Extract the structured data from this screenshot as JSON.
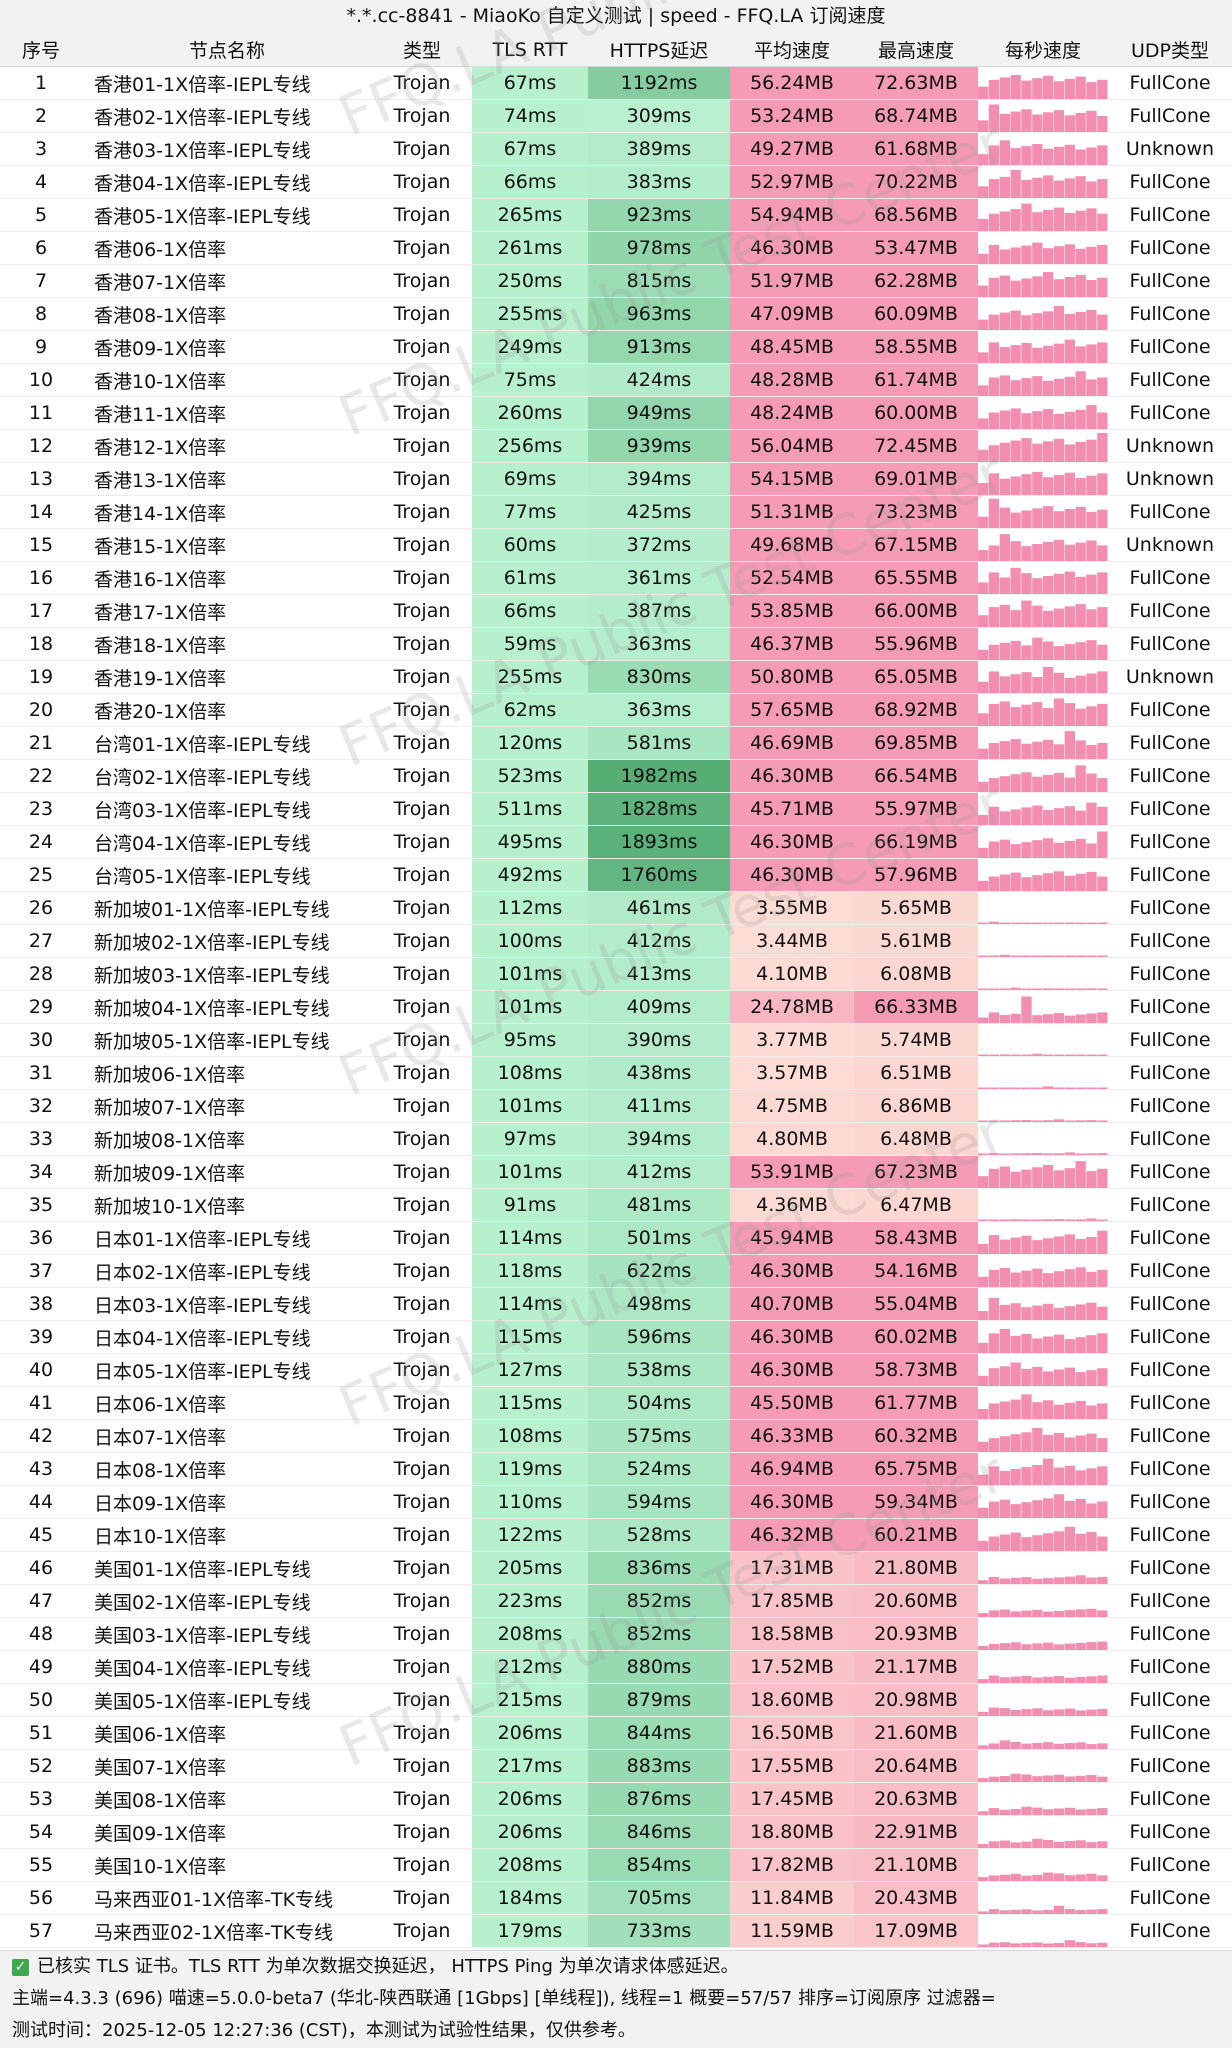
{
  "title": "*.*.cc-8841 - MiaoKo 自定义测试 | speed - FFQ.LA 订阅速度",
  "headers": [
    "序号",
    "节点名称",
    "类型",
    "TLS RTT",
    "HTTPS延迟",
    "平均速度",
    "最高速度",
    "每秒速度",
    "UDP类型"
  ],
  "watermark": "FFQ.LA Public Test Center",
  "colors": {
    "rtt_bg": "#b6f0cd",
    "https_low": "#b9f0d0",
    "https_high": "#55ad74",
    "speed_high": "#f59bb5",
    "speed_low": "#fde2d7",
    "spark_bar": "#f48eb0",
    "header_bg": "#f2f2f2"
  },
  "rows": [
    {
      "no": "1",
      "name": "香港01-1X倍率-IEPL专线",
      "type": "Trojan",
      "rtt": "67ms",
      "https": "1192ms",
      "avg": "56.24MB",
      "max": "72.63MB",
      "udp": "FullCone"
    },
    {
      "no": "2",
      "name": "香港02-1X倍率-IEPL专线",
      "type": "Trojan",
      "rtt": "74ms",
      "https": "309ms",
      "avg": "53.24MB",
      "max": "68.74MB",
      "udp": "FullCone"
    },
    {
      "no": "3",
      "name": "香港03-1X倍率-IEPL专线",
      "type": "Trojan",
      "rtt": "67ms",
      "https": "389ms",
      "avg": "49.27MB",
      "max": "61.68MB",
      "udp": "Unknown"
    },
    {
      "no": "4",
      "name": "香港04-1X倍率-IEPL专线",
      "type": "Trojan",
      "rtt": "66ms",
      "https": "383ms",
      "avg": "52.97MB",
      "max": "70.22MB",
      "udp": "FullCone"
    },
    {
      "no": "5",
      "name": "香港05-1X倍率-IEPL专线",
      "type": "Trojan",
      "rtt": "265ms",
      "https": "923ms",
      "avg": "54.94MB",
      "max": "68.56MB",
      "udp": "FullCone"
    },
    {
      "no": "6",
      "name": "香港06-1X倍率",
      "type": "Trojan",
      "rtt": "261ms",
      "https": "978ms",
      "avg": "46.30MB",
      "max": "53.47MB",
      "udp": "FullCone"
    },
    {
      "no": "7",
      "name": "香港07-1X倍率",
      "type": "Trojan",
      "rtt": "250ms",
      "https": "815ms",
      "avg": "51.97MB",
      "max": "62.28MB",
      "udp": "FullCone"
    },
    {
      "no": "8",
      "name": "香港08-1X倍率",
      "type": "Trojan",
      "rtt": "255ms",
      "https": "963ms",
      "avg": "47.09MB",
      "max": "60.09MB",
      "udp": "FullCone"
    },
    {
      "no": "9",
      "name": "香港09-1X倍率",
      "type": "Trojan",
      "rtt": "249ms",
      "https": "913ms",
      "avg": "48.45MB",
      "max": "58.55MB",
      "udp": "FullCone"
    },
    {
      "no": "10",
      "name": "香港10-1X倍率",
      "type": "Trojan",
      "rtt": "75ms",
      "https": "424ms",
      "avg": "48.28MB",
      "max": "61.74MB",
      "udp": "FullCone"
    },
    {
      "no": "11",
      "name": "香港11-1X倍率",
      "type": "Trojan",
      "rtt": "260ms",
      "https": "949ms",
      "avg": "48.24MB",
      "max": "60.00MB",
      "udp": "FullCone"
    },
    {
      "no": "12",
      "name": "香港12-1X倍率",
      "type": "Trojan",
      "rtt": "256ms",
      "https": "939ms",
      "avg": "56.04MB",
      "max": "72.45MB",
      "udp": "Unknown"
    },
    {
      "no": "13",
      "name": "香港13-1X倍率",
      "type": "Trojan",
      "rtt": "69ms",
      "https": "394ms",
      "avg": "54.15MB",
      "max": "69.01MB",
      "udp": "Unknown"
    },
    {
      "no": "14",
      "name": "香港14-1X倍率",
      "type": "Trojan",
      "rtt": "77ms",
      "https": "425ms",
      "avg": "51.31MB",
      "max": "73.23MB",
      "udp": "FullCone"
    },
    {
      "no": "15",
      "name": "香港15-1X倍率",
      "type": "Trojan",
      "rtt": "60ms",
      "https": "372ms",
      "avg": "49.68MB",
      "max": "67.15MB",
      "udp": "Unknown"
    },
    {
      "no": "16",
      "name": "香港16-1X倍率",
      "type": "Trojan",
      "rtt": "61ms",
      "https": "361ms",
      "avg": "52.54MB",
      "max": "65.55MB",
      "udp": "FullCone"
    },
    {
      "no": "17",
      "name": "香港17-1X倍率",
      "type": "Trojan",
      "rtt": "66ms",
      "https": "387ms",
      "avg": "53.85MB",
      "max": "66.00MB",
      "udp": "FullCone"
    },
    {
      "no": "18",
      "name": "香港18-1X倍率",
      "type": "Trojan",
      "rtt": "59ms",
      "https": "363ms",
      "avg": "46.37MB",
      "max": "55.96MB",
      "udp": "FullCone"
    },
    {
      "no": "19",
      "name": "香港19-1X倍率",
      "type": "Trojan",
      "rtt": "255ms",
      "https": "830ms",
      "avg": "50.80MB",
      "max": "65.05MB",
      "udp": "Unknown"
    },
    {
      "no": "20",
      "name": "香港20-1X倍率",
      "type": "Trojan",
      "rtt": "62ms",
      "https": "363ms",
      "avg": "57.65MB",
      "max": "68.92MB",
      "udp": "FullCone"
    },
    {
      "no": "21",
      "name": "台湾01-1X倍率-IEPL专线",
      "type": "Trojan",
      "rtt": "120ms",
      "https": "581ms",
      "avg": "46.69MB",
      "max": "69.85MB",
      "udp": "FullCone"
    },
    {
      "no": "22",
      "name": "台湾02-1X倍率-IEPL专线",
      "type": "Trojan",
      "rtt": "523ms",
      "https": "1982ms",
      "avg": "46.30MB",
      "max": "66.54MB",
      "udp": "FullCone"
    },
    {
      "no": "23",
      "name": "台湾03-1X倍率-IEPL专线",
      "type": "Trojan",
      "rtt": "511ms",
      "https": "1828ms",
      "avg": "45.71MB",
      "max": "55.97MB",
      "udp": "FullCone"
    },
    {
      "no": "24",
      "name": "台湾04-1X倍率-IEPL专线",
      "type": "Trojan",
      "rtt": "495ms",
      "https": "1893ms",
      "avg": "46.30MB",
      "max": "66.19MB",
      "udp": "FullCone"
    },
    {
      "no": "25",
      "name": "台湾05-1X倍率-IEPL专线",
      "type": "Trojan",
      "rtt": "492ms",
      "https": "1760ms",
      "avg": "46.30MB",
      "max": "57.96MB",
      "udp": "FullCone"
    },
    {
      "no": "26",
      "name": "新加坡01-1X倍率-IEPL专线",
      "type": "Trojan",
      "rtt": "112ms",
      "https": "461ms",
      "avg": "3.55MB",
      "max": "5.65MB",
      "udp": "FullCone"
    },
    {
      "no": "27",
      "name": "新加坡02-1X倍率-IEPL专线",
      "type": "Trojan",
      "rtt": "100ms",
      "https": "412ms",
      "avg": "3.44MB",
      "max": "5.61MB",
      "udp": "FullCone"
    },
    {
      "no": "28",
      "name": "新加坡03-1X倍率-IEPL专线",
      "type": "Trojan",
      "rtt": "101ms",
      "https": "413ms",
      "avg": "4.10MB",
      "max": "6.08MB",
      "udp": "FullCone"
    },
    {
      "no": "29",
      "name": "新加坡04-1X倍率-IEPL专线",
      "type": "Trojan",
      "rtt": "101ms",
      "https": "409ms",
      "avg": "24.78MB",
      "max": "66.33MB",
      "udp": "FullCone"
    },
    {
      "no": "30",
      "name": "新加坡05-1X倍率-IEPL专线",
      "type": "Trojan",
      "rtt": "95ms",
      "https": "390ms",
      "avg": "3.77MB",
      "max": "5.74MB",
      "udp": "FullCone"
    },
    {
      "no": "31",
      "name": "新加坡06-1X倍率",
      "type": "Trojan",
      "rtt": "108ms",
      "https": "438ms",
      "avg": "3.57MB",
      "max": "6.51MB",
      "udp": "FullCone"
    },
    {
      "no": "32",
      "name": "新加坡07-1X倍率",
      "type": "Trojan",
      "rtt": "101ms",
      "https": "411ms",
      "avg": "4.75MB",
      "max": "6.86MB",
      "udp": "FullCone"
    },
    {
      "no": "33",
      "name": "新加坡08-1X倍率",
      "type": "Trojan",
      "rtt": "97ms",
      "https": "394ms",
      "avg": "4.80MB",
      "max": "6.48MB",
      "udp": "FullCone"
    },
    {
      "no": "34",
      "name": "新加坡09-1X倍率",
      "type": "Trojan",
      "rtt": "101ms",
      "https": "412ms",
      "avg": "53.91MB",
      "max": "67.23MB",
      "udp": "FullCone"
    },
    {
      "no": "35",
      "name": "新加坡10-1X倍率",
      "type": "Trojan",
      "rtt": "91ms",
      "https": "481ms",
      "avg": "4.36MB",
      "max": "6.47MB",
      "udp": "FullCone"
    },
    {
      "no": "36",
      "name": "日本01-1X倍率-IEPL专线",
      "type": "Trojan",
      "rtt": "114ms",
      "https": "501ms",
      "avg": "45.94MB",
      "max": "58.43MB",
      "udp": "FullCone"
    },
    {
      "no": "37",
      "name": "日本02-1X倍率-IEPL专线",
      "type": "Trojan",
      "rtt": "118ms",
      "https": "622ms",
      "avg": "46.30MB",
      "max": "54.16MB",
      "udp": "FullCone"
    },
    {
      "no": "38",
      "name": "日本03-1X倍率-IEPL专线",
      "type": "Trojan",
      "rtt": "114ms",
      "https": "498ms",
      "avg": "40.70MB",
      "max": "55.04MB",
      "udp": "FullCone"
    },
    {
      "no": "39",
      "name": "日本04-1X倍率-IEPL专线",
      "type": "Trojan",
      "rtt": "115ms",
      "https": "596ms",
      "avg": "46.30MB",
      "max": "60.02MB",
      "udp": "FullCone"
    },
    {
      "no": "40",
      "name": "日本05-1X倍率-IEPL专线",
      "type": "Trojan",
      "rtt": "127ms",
      "https": "538ms",
      "avg": "46.30MB",
      "max": "58.73MB",
      "udp": "FullCone"
    },
    {
      "no": "41",
      "name": "日本06-1X倍率",
      "type": "Trojan",
      "rtt": "115ms",
      "https": "504ms",
      "avg": "45.50MB",
      "max": "61.77MB",
      "udp": "FullCone"
    },
    {
      "no": "42",
      "name": "日本07-1X倍率",
      "type": "Trojan",
      "rtt": "108ms",
      "https": "575ms",
      "avg": "46.33MB",
      "max": "60.32MB",
      "udp": "FullCone"
    },
    {
      "no": "43",
      "name": "日本08-1X倍率",
      "type": "Trojan",
      "rtt": "119ms",
      "https": "524ms",
      "avg": "46.94MB",
      "max": "65.75MB",
      "udp": "FullCone"
    },
    {
      "no": "44",
      "name": "日本09-1X倍率",
      "type": "Trojan",
      "rtt": "110ms",
      "https": "594ms",
      "avg": "46.30MB",
      "max": "59.34MB",
      "udp": "FullCone"
    },
    {
      "no": "45",
      "name": "日本10-1X倍率",
      "type": "Trojan",
      "rtt": "122ms",
      "https": "528ms",
      "avg": "46.32MB",
      "max": "60.21MB",
      "udp": "FullCone"
    },
    {
      "no": "46",
      "name": "美国01-1X倍率-IEPL专线",
      "type": "Trojan",
      "rtt": "205ms",
      "https": "836ms",
      "avg": "17.31MB",
      "max": "21.80MB",
      "udp": "FullCone"
    },
    {
      "no": "47",
      "name": "美国02-1X倍率-IEPL专线",
      "type": "Trojan",
      "rtt": "223ms",
      "https": "852ms",
      "avg": "17.85MB",
      "max": "20.60MB",
      "udp": "FullCone"
    },
    {
      "no": "48",
      "name": "美国03-1X倍率-IEPL专线",
      "type": "Trojan",
      "rtt": "208ms",
      "https": "852ms",
      "avg": "18.58MB",
      "max": "20.93MB",
      "udp": "FullCone"
    },
    {
      "no": "49",
      "name": "美国04-1X倍率-IEPL专线",
      "type": "Trojan",
      "rtt": "212ms",
      "https": "880ms",
      "avg": "17.52MB",
      "max": "21.17MB",
      "udp": "FullCone"
    },
    {
      "no": "50",
      "name": "美国05-1X倍率-IEPL专线",
      "type": "Trojan",
      "rtt": "215ms",
      "https": "879ms",
      "avg": "18.60MB",
      "max": "20.98MB",
      "udp": "FullCone"
    },
    {
      "no": "51",
      "name": "美国06-1X倍率",
      "type": "Trojan",
      "rtt": "206ms",
      "https": "844ms",
      "avg": "16.50MB",
      "max": "21.60MB",
      "udp": "FullCone"
    },
    {
      "no": "52",
      "name": "美国07-1X倍率",
      "type": "Trojan",
      "rtt": "217ms",
      "https": "883ms",
      "avg": "17.55MB",
      "max": "20.64MB",
      "udp": "FullCone"
    },
    {
      "no": "53",
      "name": "美国08-1X倍率",
      "type": "Trojan",
      "rtt": "206ms",
      "https": "876ms",
      "avg": "17.45MB",
      "max": "20.63MB",
      "udp": "FullCone"
    },
    {
      "no": "54",
      "name": "美国09-1X倍率",
      "type": "Trojan",
      "rtt": "206ms",
      "https": "846ms",
      "avg": "18.80MB",
      "max": "22.91MB",
      "udp": "FullCone"
    },
    {
      "no": "55",
      "name": "美国10-1X倍率",
      "type": "Trojan",
      "rtt": "208ms",
      "https": "854ms",
      "avg": "17.82MB",
      "max": "21.10MB",
      "udp": "FullCone"
    },
    {
      "no": "56",
      "name": "马来西亚01-1X倍率-TK专线",
      "type": "Trojan",
      "rtt": "184ms",
      "https": "705ms",
      "avg": "11.84MB",
      "max": "20.43MB",
      "udp": "FullCone"
    },
    {
      "no": "57",
      "name": "马来西亚02-1X倍率-TK专线",
      "type": "Trojan",
      "rtt": "179ms",
      "https": "733ms",
      "avg": "11.59MB",
      "max": "17.09MB",
      "udp": "FullCone"
    }
  ],
  "footer": {
    "line1": "已核实 TLS 证书。TLS RTT 为单次数据交换延迟， HTTPS Ping 为单次请求体感延迟。",
    "line2": "主端=4.3.3 (696) 喵速=5.0.0-beta7 (华北-陕西联通 [1Gbps] [单线程]), 线程=1 概要=57/57 排序=订阅原序 过滤器=",
    "line3": "测试时间：2025-12-05 12:27:36 (CST)，本测试为试验性结果，仅供参考。",
    "check_icon": "check-icon"
  }
}
